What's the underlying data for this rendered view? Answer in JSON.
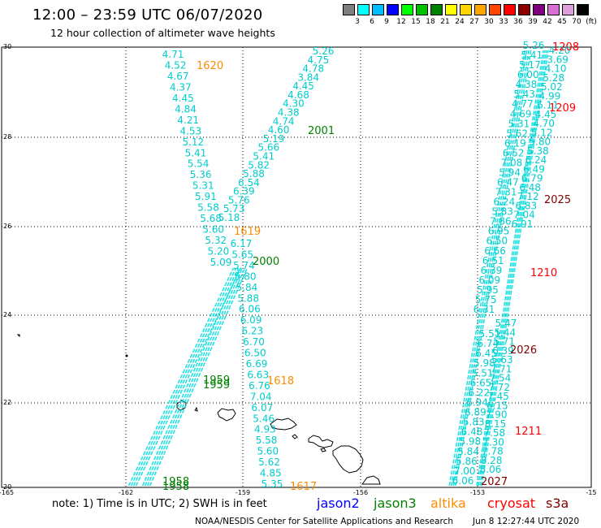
{
  "header": {
    "title": "12:00 – 23:59 UTC 06/07/2020",
    "subtitle": "12 hour collection of altimeter wave heights"
  },
  "color_scale": {
    "labels": [
      "3",
      "6",
      "9",
      "12",
      "15",
      "18",
      "21",
      "24",
      "27",
      "30",
      "33",
      "36",
      "39",
      "42",
      "45",
      "70",
      "(ft)"
    ],
    "colors": [
      "#7f7f7f",
      "#00ffff",
      "#00bfff",
      "#0000ff",
      "#00ff00",
      "#00c000",
      "#008000",
      "#ffff00",
      "#ffd700",
      "#ffa500",
      "#ff4500",
      "#ff0000",
      "#8b0000",
      "#800080",
      "#da70d6",
      "#dda0dd",
      "#000000"
    ]
  },
  "map": {
    "x_ticks": [
      "-165",
      "-162",
      "-159",
      "-156",
      "-153",
      "-15"
    ],
    "y_ticks": [
      "30",
      "28",
      "26",
      "24",
      "22",
      "20"
    ],
    "passes": [
      {
        "time": "1620",
        "color": "#ff8c00"
      },
      {
        "time": "2001",
        "color": "#008000"
      },
      {
        "time": "1208",
        "color": "#ff0000"
      },
      {
        "time": "1209",
        "color": "#ff0000"
      },
      {
        "time": "2025",
        "color": "#800000"
      },
      {
        "time": "1619",
        "color": "#ff8c00"
      },
      {
        "time": "2000",
        "color": "#008000"
      },
      {
        "time": "1210",
        "color": "#ff0000"
      },
      {
        "time": "2026",
        "color": "#800000"
      },
      {
        "time": "1959",
        "color": "#008000"
      },
      {
        "time": "1959",
        "color": "#008000"
      },
      {
        "time": "1618",
        "color": "#ff8c00"
      },
      {
        "time": "1211",
        "color": "#ff0000"
      },
      {
        "time": "1958",
        "color": "#008000"
      },
      {
        "time": "1958",
        "color": "#008000"
      },
      {
        "time": "1617",
        "color": "#ff8c00"
      },
      {
        "time": "2027",
        "color": "#800000"
      }
    ],
    "track_a_values": [
      "4.71",
      "4.52",
      "4.67",
      "4.37",
      "4.45",
      "4.84",
      "4.21",
      "4.53",
      "5.12",
      "5.41",
      "5.54",
      "5.36",
      "5.31",
      "5.91",
      "5.58",
      "5.68",
      "5.60",
      "5.32",
      "5.20",
      "5.09"
    ],
    "track_b_values": [
      "5.26",
      "4.75",
      "4.78",
      "3.84",
      "4.45",
      "4.68",
      "4.30",
      "4.38",
      "4.74",
      "4.60",
      "5.19",
      "5.66",
      "5.41",
      "5.82",
      "5.88",
      "6.54",
      "6.39",
      "5.76",
      "5.73",
      "5.18"
    ],
    "track_c_values": [
      "6.17",
      "5.65",
      "5.74",
      "5.80",
      "5.84",
      "5.88",
      "6.06",
      "6.09",
      "6.23",
      "6.70",
      "6.50",
      "6.69",
      "6.63",
      "6.76",
      "7.04",
      "6.07",
      "5.46",
      "4.93",
      "5.58",
      "5.60",
      "5.62",
      "4.85",
      "5.35"
    ],
    "track_d_values": [
      "5.26",
      "5.41",
      "5.17",
      "6.00",
      "4.38",
      "5.43",
      "4.77",
      "4.69",
      "5.31",
      "5.62",
      "6.19",
      "6.52",
      "7.08",
      "5.94",
      "6.47",
      "7.31",
      "6.24",
      "5.83",
      "7.86",
      "6.95",
      "6.50",
      "6.66",
      "6.51",
      "6.39",
      "6.09",
      "5.95",
      "5.75",
      "6.31"
    ],
    "track_e_values": [
      "4.20",
      "3.69",
      "4.10",
      "5.28",
      "5.02",
      "4.99",
      "6.11",
      "4.45",
      "4.70",
      "5.12",
      "5.80",
      "5.38",
      "6.24",
      "6.49",
      "6.79",
      "6.48",
      "7.12",
      "6.83",
      "7.04",
      "6.91"
    ],
    "track_f_values": [
      "5.47",
      "5.44",
      "5.71",
      "6.39",
      "5.63",
      "7.71",
      "7.54",
      "7.72",
      "7.45",
      "6.15",
      "7.90",
      "8.15",
      "7.58",
      "7.30",
      "7.78",
      "8.28",
      "8.06"
    ],
    "track_g_values": [
      "5.51",
      "6.74",
      "6.45",
      "5.98",
      "5.51",
      "6.65",
      "6.22",
      "6.94",
      "6.89",
      "5.83",
      "6.48",
      "5.98",
      "5.84",
      "5.86",
      "7.00",
      "6.06"
    ]
  },
  "note": "note:  1) Time is in UTC;  2) SWH is in feet",
  "missions": [
    {
      "name": "jason2",
      "color": "#0000ff"
    },
    {
      "name": "jason3",
      "color": "#008000"
    },
    {
      "name": "altika",
      "color": "#ff8c00"
    },
    {
      "name": "cryosat",
      "color": "#ff0000"
    },
    {
      "name": "s3a",
      "color": "#800000"
    }
  ],
  "footer": {
    "center": "NOAA/NESDIS Center for Satellite Applications and Research",
    "timestamp": "Jun  8 12:27:44 UTC 2020"
  }
}
